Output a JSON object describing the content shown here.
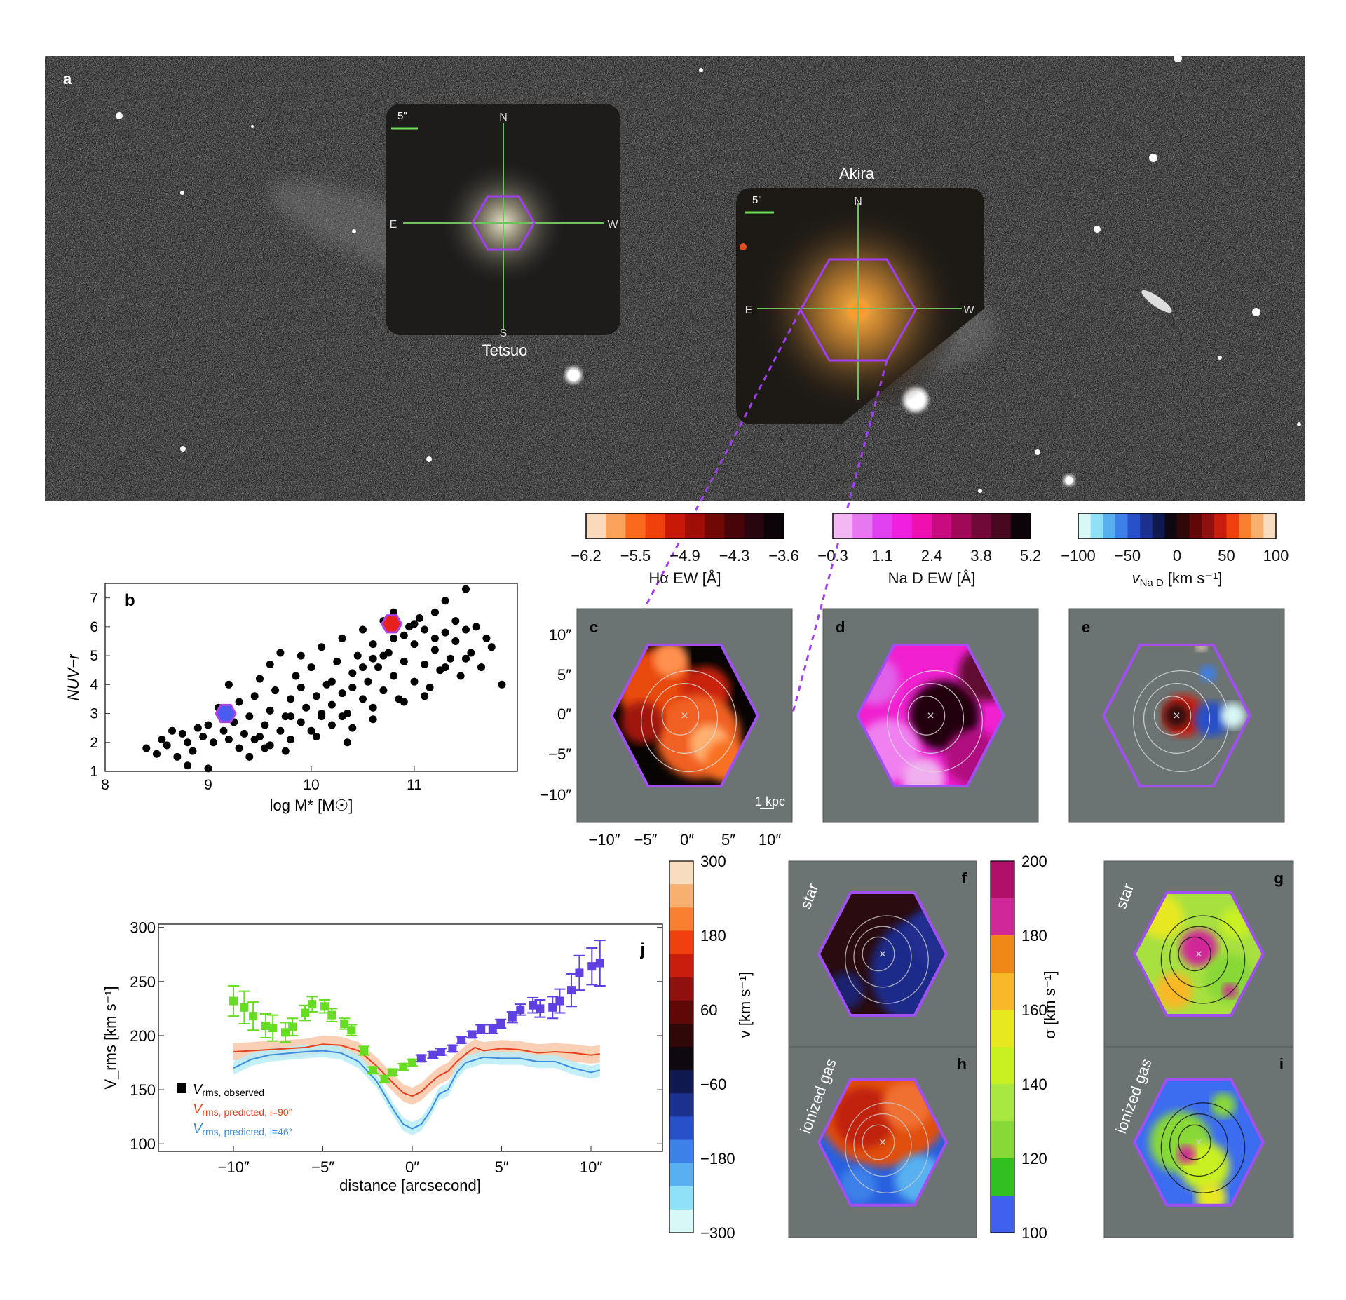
{
  "panel_a": {
    "label": "a",
    "tetsuo": {
      "name": "Tetsuo",
      "scale": "5\"",
      "compass": {
        "n": "N",
        "s": "S",
        "e": "E",
        "w": "W"
      }
    },
    "akira": {
      "name": "Akira",
      "scale": "5\"",
      "compass": {
        "n": "N",
        "e": "E",
        "w": "W"
      }
    }
  },
  "colorbars": [
    {
      "title": "Hα EW [Å]",
      "ticks": [
        "−6.2",
        "−5.5",
        "−4.9",
        "−4.3",
        "−3.6"
      ],
      "colors": [
        "#fbd9bd",
        "#fba25c",
        "#fb6a1c",
        "#f0400c",
        "#c81808",
        "#a00c06",
        "#700806",
        "#480408",
        "#280610",
        "#0c0408"
      ]
    },
    {
      "title": "Na D EW [Å]",
      "ticks": [
        "−0.3",
        "1.1",
        "2.4",
        "3.8",
        "5.2"
      ],
      "colors": [
        "#f3b8f3",
        "#e878f0",
        "#e040f0",
        "#f020e0",
        "#f010b0",
        "#c80c80",
        "#a00858",
        "#700838",
        "#480820",
        "#0c0408"
      ]
    },
    {
      "title": "v",
      "title_sub": "Na D",
      "title_unit": "[km s⁻¹]",
      "ticks": [
        "−100",
        "−50",
        "0",
        "50",
        "100"
      ],
      "colors": [
        "#d8f8f8",
        "#90e0f8",
        "#58b0f0",
        "#3c80e8",
        "#2850c8",
        "#1c3090",
        "#101850",
        "#100810",
        "#300808",
        "#600808",
        "#901010",
        "#c81c0c",
        "#f04010",
        "#f88030",
        "#f8b070",
        "#f8dcc0"
      ]
    }
  ],
  "panel_b": {
    "label": "b"
  },
  "maps": {
    "c": {
      "label": "c",
      "scalebar": "1 kpc"
    },
    "d": {
      "label": "d"
    },
    "e": {
      "label": "e"
    },
    "f": {
      "label": "f",
      "tag": "star"
    },
    "g": {
      "label": "g",
      "tag": "star"
    },
    "h": {
      "label": "h",
      "tag": "ionized gas"
    },
    "i": {
      "label": "i",
      "tag": "ionized gas"
    },
    "y_ticks": [
      "10″",
      "5″",
      "0″",
      "−5″",
      "−10″"
    ],
    "x_ticks": [
      "−10″",
      "−5″",
      "0″",
      "5″",
      "10″"
    ]
  },
  "v_colorbar": {
    "title": "v [km s⁻¹]",
    "ticks": [
      "300",
      "180",
      "60",
      "−60",
      "−180",
      "−300"
    ],
    "colors": [
      "#f8dcc0",
      "#f8b070",
      "#f88030",
      "#f04010",
      "#c81c0c",
      "#901010",
      "#600808",
      "#300808",
      "#100810",
      "#101850",
      "#1c3090",
      "#2850c8",
      "#3c80e8",
      "#58b0f0",
      "#90e0f8",
      "#d8f8f8"
    ]
  },
  "sigma_colorbar": {
    "title": "σ [km s⁻¹]",
    "ticks": [
      "200",
      "180",
      "160",
      "140",
      "120",
      "100"
    ],
    "colors": [
      "#b0106a",
      "#d02898",
      "#f08818",
      "#f8b828",
      "#e8e820",
      "#c8f020",
      "#a8e840",
      "#88d838",
      "#30c020",
      "#4060f0"
    ]
  },
  "chart_data": [
    {
      "type": "scatter",
      "panel": "b",
      "xlabel": "log M* [M☉]",
      "ylabel": "NUV−r",
      "xlim": [
        8,
        12
      ],
      "ylim": [
        1,
        7.5
      ],
      "xticks": [
        "8",
        "9",
        "10",
        "11"
      ],
      "yticks": [
        "1",
        "2",
        "3",
        "4",
        "5",
        "6",
        "7"
      ],
      "points": [
        [
          8.4,
          1.8
        ],
        [
          8.5,
          1.6
        ],
        [
          8.55,
          2.1
        ],
        [
          8.6,
          1.9
        ],
        [
          8.65,
          2.4
        ],
        [
          8.7,
          1.5
        ],
        [
          8.75,
          2.3
        ],
        [
          8.8,
          1.2
        ],
        [
          8.8,
          2.0
        ],
        [
          8.85,
          1.7
        ],
        [
          8.9,
          2.5
        ],
        [
          8.95,
          2.2
        ],
        [
          9.0,
          1.1
        ],
        [
          9.0,
          2.6
        ],
        [
          9.05,
          2.0
        ],
        [
          9.1,
          3.2
        ],
        [
          9.15,
          2.4
        ],
        [
          9.2,
          2.1
        ],
        [
          9.2,
          4.0
        ],
        [
          9.25,
          2.7
        ],
        [
          9.3,
          1.8
        ],
        [
          9.3,
          3.4
        ],
        [
          9.35,
          2.3
        ],
        [
          9.4,
          2.9
        ],
        [
          9.4,
          1.5
        ],
        [
          9.45,
          3.6
        ],
        [
          9.5,
          2.2
        ],
        [
          9.5,
          4.2
        ],
        [
          9.55,
          2.6
        ],
        [
          9.6,
          3.1
        ],
        [
          9.6,
          1.9
        ],
        [
          9.65,
          3.8
        ],
        [
          9.7,
          2.4
        ],
        [
          9.7,
          5.1
        ],
        [
          9.75,
          2.9
        ],
        [
          9.8,
          3.5
        ],
        [
          9.8,
          2.1
        ],
        [
          9.85,
          4.3
        ],
        [
          9.9,
          2.7
        ],
        [
          9.9,
          3.9
        ],
        [
          9.95,
          3.2
        ],
        [
          10.0,
          2.4
        ],
        [
          10.0,
          4.6
        ],
        [
          10.05,
          3.6
        ],
        [
          10.1,
          2.9
        ],
        [
          10.1,
          5.3
        ],
        [
          10.15,
          4.0
        ],
        [
          10.2,
          3.3
        ],
        [
          10.2,
          2.6
        ],
        [
          10.25,
          4.8
        ],
        [
          10.3,
          3.7
        ],
        [
          10.3,
          5.6
        ],
        [
          10.35,
          3.0
        ],
        [
          10.4,
          4.4
        ],
        [
          10.4,
          2.5
        ],
        [
          10.45,
          5.0
        ],
        [
          10.5,
          3.5
        ],
        [
          10.5,
          5.9
        ],
        [
          10.55,
          4.1
        ],
        [
          10.6,
          3.2
        ],
        [
          10.6,
          5.4
        ],
        [
          10.65,
          4.6
        ],
        [
          10.7,
          6.2
        ],
        [
          10.7,
          3.8
        ],
        [
          10.75,
          5.1
        ],
        [
          10.8,
          4.3
        ],
        [
          10.8,
          6.5
        ],
        [
          10.85,
          3.5
        ],
        [
          10.9,
          5.7
        ],
        [
          10.9,
          4.8
        ],
        [
          10.95,
          6.0
        ],
        [
          11.0,
          4.1
        ],
        [
          11.0,
          5.4
        ],
        [
          11.05,
          6.3
        ],
        [
          11.1,
          4.7
        ],
        [
          11.1,
          5.9
        ],
        [
          11.15,
          3.9
        ],
        [
          11.2,
          5.2
        ],
        [
          11.2,
          6.5
        ],
        [
          11.25,
          4.5
        ],
        [
          11.3,
          5.8
        ],
        [
          11.3,
          6.9
        ],
        [
          11.35,
          4.9
        ],
        [
          11.4,
          5.5
        ],
        [
          11.4,
          6.2
        ],
        [
          11.45,
          4.3
        ],
        [
          11.5,
          5.9
        ],
        [
          11.5,
          7.3
        ],
        [
          11.55,
          5.1
        ],
        [
          11.6,
          6.0
        ],
        [
          11.65,
          4.6
        ],
        [
          11.7,
          5.6
        ],
        [
          11.75,
          5.3
        ],
        [
          11.85,
          4.0
        ],
        [
          9.6,
          4.7
        ],
        [
          9.9,
          5.0
        ],
        [
          10.2,
          4.1
        ],
        [
          10.4,
          3.9
        ],
        [
          10.6,
          4.9
        ],
        [
          10.8,
          5.6
        ],
        [
          11.0,
          6.1
        ],
        [
          11.2,
          5.6
        ],
        [
          10.1,
          3.0
        ],
        [
          10.3,
          2.9
        ],
        [
          9.8,
          2.9
        ],
        [
          10.6,
          2.8
        ],
        [
          10.9,
          3.4
        ],
        [
          11.1,
          3.6
        ],
        [
          10.5,
          4.6
        ],
        [
          10.7,
          5.0
        ],
        [
          11.3,
          4.6
        ],
        [
          11.5,
          4.9
        ],
        [
          9.45,
          2.1
        ],
        [
          9.55,
          1.8
        ],
        [
          9.75,
          1.7
        ],
        [
          10.05,
          2.2
        ],
        [
          10.35,
          2.0
        ]
      ],
      "highlights": [
        {
          "name": "Tetsuo",
          "x": 9.17,
          "y": 3.0,
          "color": "#4a5cf0"
        },
        {
          "name": "Akira",
          "x": 10.78,
          "y": 6.1,
          "color": "#e8201c"
        }
      ]
    },
    {
      "type": "scatter",
      "panel": "j",
      "xlabel": "distance [arcsecond]",
      "ylabel": "V_rms [km s⁻¹]",
      "xlim": [
        -14.2,
        14.0
      ],
      "ylim": [
        93,
        303
      ],
      "xticks": [
        "−10″",
        "−5″",
        "0″",
        "5″",
        "10″"
      ],
      "xtick_values": [
        -10,
        -5,
        0,
        5,
        10
      ],
      "yticks": [
        "100",
        "150",
        "200",
        "250",
        "300"
      ],
      "legend": [
        {
          "main": "V",
          "sub": "rms, observed",
          "color": "#000000",
          "marker": "square"
        },
        {
          "main": "V",
          "sub": "rms, predicted, i=90°",
          "color": "#e8401c"
        },
        {
          "main": "V",
          "sub": "rms, predicted, i=46°",
          "color": "#3c8ce0"
        }
      ],
      "observed_east": {
        "color": "#66dd22",
        "x": [
          -10.0,
          -9.4,
          -8.9,
          -8.2,
          -7.8,
          -7.1,
          -6.7,
          -6.0,
          -5.6,
          -4.9,
          -4.5,
          -3.8,
          -3.4,
          -2.7,
          -2.2,
          -1.55,
          -1.1,
          -0.5,
          0.0
        ],
        "y": [
          232,
          226,
          218,
          209,
          207,
          203,
          208,
          221,
          229,
          227,
          219,
          211,
          205,
          186,
          168,
          160,
          166,
          171,
          175
        ],
        "err": [
          14,
          15,
          13,
          11,
          12,
          9,
          8,
          7,
          7,
          6,
          6,
          5,
          5,
          4,
          3,
          3,
          3,
          3,
          3
        ]
      },
      "observed_west": {
        "color": "#6040e0",
        "x": [
          0.5,
          1.15,
          1.6,
          2.25,
          2.75,
          3.35,
          3.85,
          4.5,
          4.95,
          5.6,
          6.05,
          6.75,
          7.15,
          7.85,
          8.25,
          8.9,
          9.35,
          10.05,
          10.5
        ],
        "y": [
          179,
          182,
          185,
          188,
          196,
          201,
          206,
          206,
          211,
          217,
          224,
          228,
          225,
          226,
          232,
          242,
          258,
          264,
          267
        ],
        "err": [
          3,
          3,
          3,
          3,
          3,
          3,
          4,
          4,
          4,
          5,
          5,
          7,
          8,
          10,
          11,
          15,
          16,
          17,
          21
        ]
      },
      "predicted_i90": {
        "color": "#e8401c",
        "band_color": "#f8c8a8",
        "band": 8,
        "x": [
          -10,
          -8,
          -6,
          -5,
          -4,
          -3,
          -2,
          -1,
          -0.5,
          0,
          0.5,
          1,
          1.5,
          2,
          2.5,
          3,
          3.5,
          4,
          5,
          6,
          7,
          8,
          9,
          10,
          10.5
        ],
        "y": [
          185,
          187,
          189,
          192,
          191,
          186,
          172,
          155,
          147,
          144,
          148,
          156,
          163,
          167,
          176,
          183,
          189,
          186,
          188,
          187,
          184,
          185,
          184,
          182,
          183
        ]
      },
      "predicted_i46": {
        "color": "#3c8ce0",
        "band_color": "#b8ecf4",
        "band": 6,
        "x": [
          -10,
          -9,
          -8,
          -6,
          -5,
          -4,
          -3,
          -2,
          -1,
          -0.5,
          0,
          0.5,
          1,
          1.5,
          2,
          2.5,
          3,
          4,
          5,
          6,
          7,
          8,
          9,
          10,
          10.5
        ],
        "y": [
          170,
          178,
          182,
          185,
          186,
          184,
          176,
          158,
          130,
          118,
          114,
          118,
          130,
          146,
          150,
          166,
          175,
          180,
          179,
          179,
          176,
          176,
          170,
          166,
          168
        ]
      },
      "panel_label": "j"
    }
  ]
}
